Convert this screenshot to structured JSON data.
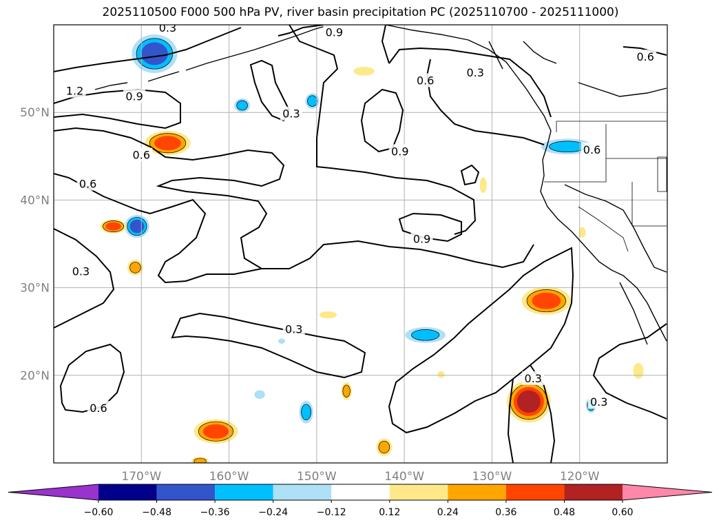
{
  "chart_data": {
    "type": "contour-map",
    "title": "2025110500 F000 500 hPa PV, river basin precipitation PC (2025110700 - 2025111000)",
    "lon_range": [
      -180,
      -110
    ],
    "lat_range": [
      10,
      60
    ],
    "lon_ticks": [
      {
        "value": -170,
        "label": "170°W"
      },
      {
        "value": -160,
        "label": "160°W"
      },
      {
        "value": -150,
        "label": "150°W"
      },
      {
        "value": -140,
        "label": "140°W"
      },
      {
        "value": -130,
        "label": "130°W"
      },
      {
        "value": -120,
        "label": "120°W"
      }
    ],
    "lat_ticks": [
      {
        "value": 20,
        "label": "20°N"
      },
      {
        "value": 30,
        "label": "30°N"
      },
      {
        "value": 40,
        "label": "40°N"
      },
      {
        "value": 50,
        "label": "50°N"
      }
    ],
    "pv_contour_levels": [
      0.3,
      0.6,
      0.9,
      1.2
    ],
    "contour_labels": [
      {
        "text": "0.3",
        "lon": -167,
        "lat": 59.6
      },
      {
        "text": "0.9",
        "lon": -148,
        "lat": 59.1
      },
      {
        "text": "0.6",
        "lon": -112.5,
        "lat": 56.3
      },
      {
        "text": "0.3",
        "lon": -131.9,
        "lat": 54.5
      },
      {
        "text": "0.6",
        "lon": -137.6,
        "lat": 53.6
      },
      {
        "text": "1.2",
        "lon": -177.6,
        "lat": 52.4
      },
      {
        "text": "0.9",
        "lon": -170.8,
        "lat": 51.8
      },
      {
        "text": "0.3",
        "lon": -152.9,
        "lat": 49.8
      },
      {
        "text": "0.6",
        "lon": -118.6,
        "lat": 45.7
      },
      {
        "text": "0.9",
        "lon": -140.5,
        "lat": 45.5
      },
      {
        "text": "0.6",
        "lon": -170,
        "lat": 45.1
      },
      {
        "text": "0.6",
        "lon": -176.1,
        "lat": 41.8
      },
      {
        "text": "0.9",
        "lon": -138,
        "lat": 35.5
      },
      {
        "text": "0.3",
        "lon": -176.9,
        "lat": 31.8
      },
      {
        "text": "0.3",
        "lon": -152.6,
        "lat": 25.2
      },
      {
        "text": "0.3",
        "lon": -125.3,
        "lat": 19.6
      },
      {
        "text": "0.6",
        "lon": -174.9,
        "lat": 16.2
      },
      {
        "text": "0.3",
        "lon": -117.8,
        "lat": 16.9
      }
    ],
    "colorbar": {
      "orientation": "horizontal",
      "extend": "both",
      "boundaries": [
        -0.6,
        -0.48,
        -0.36,
        -0.24,
        -0.12,
        0.12,
        0.24,
        0.36,
        0.48,
        0.6
      ],
      "tick_labels": [
        "−0.60",
        "−0.48",
        "−0.36",
        "−0.24",
        "−0.12",
        "0.12",
        "0.24",
        "0.36",
        "0.48",
        "0.60"
      ],
      "colors": [
        "#9933cc",
        "#00008b",
        "#3355cc",
        "#00bfff",
        "#aee0f7",
        "#ffffff",
        "#fde98a",
        "#ffa500",
        "#ff4500",
        "#b22222",
        "#ff88aa"
      ]
    },
    "precip_features": [
      {
        "lon": -168.5,
        "lat": 56.7,
        "rx": 2.6,
        "ry": 2.2,
        "value": -0.45
      },
      {
        "lon": -158.5,
        "lat": 50.8,
        "rx": 0.9,
        "ry": 0.8,
        "value": -0.3
      },
      {
        "lon": -150.5,
        "lat": 51.3,
        "rx": 0.8,
        "ry": 0.9,
        "value": -0.3
      },
      {
        "lon": -167,
        "lat": 46.5,
        "rx": 2.6,
        "ry": 1.4,
        "value": 0.4
      },
      {
        "lon": -170.5,
        "lat": 37.0,
        "rx": 1.4,
        "ry": 1.3,
        "value": -0.4
      },
      {
        "lon": -173.2,
        "lat": 37.0,
        "rx": 1.5,
        "ry": 0.8,
        "value": 0.36
      },
      {
        "lon": -170.7,
        "lat": 32.3,
        "rx": 0.9,
        "ry": 0.9,
        "value": 0.3
      },
      {
        "lon": -144.6,
        "lat": 54.7,
        "rx": 1.2,
        "ry": 0.5,
        "value": 0.2
      },
      {
        "lon": -148.7,
        "lat": 26.9,
        "rx": 1.0,
        "ry": 0.4,
        "value": 0.2
      },
      {
        "lon": -137.6,
        "lat": 24.6,
        "rx": 2.3,
        "ry": 0.9,
        "value": -0.3
      },
      {
        "lon": -123.8,
        "lat": 28.5,
        "rx": 2.8,
        "ry": 1.6,
        "value": 0.42
      },
      {
        "lon": -125.8,
        "lat": 17.0,
        "rx": 2.5,
        "ry": 2.4,
        "value": 0.5
      },
      {
        "lon": -131,
        "lat": 41.7,
        "rx": 0.4,
        "ry": 0.9,
        "value": 0.2
      },
      {
        "lon": -121.4,
        "lat": 46.1,
        "rx": 3.0,
        "ry": 0.9,
        "value": -0.3
      },
      {
        "lon": -161.5,
        "lat": 13.6,
        "rx": 2.5,
        "ry": 1.4,
        "value": 0.42
      },
      {
        "lon": -151.2,
        "lat": 15.8,
        "rx": 0.8,
        "ry": 1.3,
        "value": -0.3
      },
      {
        "lon": -146.6,
        "lat": 18.2,
        "rx": 0.6,
        "ry": 1.0,
        "value": 0.3
      },
      {
        "lon": -142.3,
        "lat": 11.8,
        "rx": 0.9,
        "ry": 1.0,
        "value": 0.3
      },
      {
        "lon": -118.7,
        "lat": 16.6,
        "rx": 0.6,
        "ry": 0.9,
        "value": -0.3
      },
      {
        "lon": -113.3,
        "lat": 20.5,
        "rx": 0.6,
        "ry": 0.9,
        "value": 0.2
      },
      {
        "lon": -119.7,
        "lat": 36.3,
        "rx": 0.4,
        "ry": 0.6,
        "value": 0.2
      },
      {
        "lon": -156.5,
        "lat": 17.8,
        "rx": 0.6,
        "ry": 0.5,
        "value": -0.2
      },
      {
        "lon": -135.8,
        "lat": 20.1,
        "rx": 0.4,
        "ry": 0.4,
        "value": 0.2
      },
      {
        "lon": -163.3,
        "lat": 10.2,
        "rx": 1.0,
        "ry": 0.5,
        "value": 0.3
      },
      {
        "lon": -154,
        "lat": 23.9,
        "rx": 0.4,
        "ry": 0.3,
        "value": -0.2
      }
    ]
  }
}
